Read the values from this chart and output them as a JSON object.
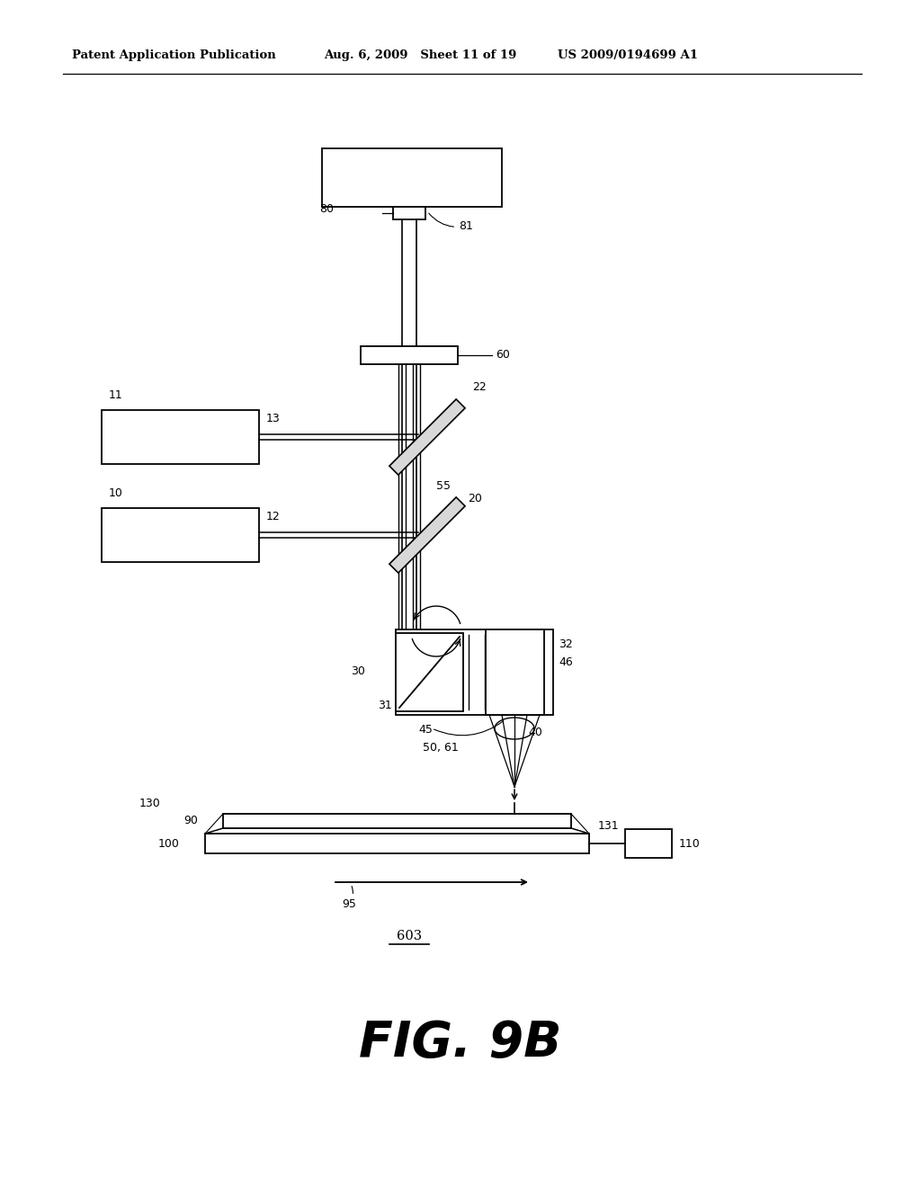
{
  "background_color": "#ffffff",
  "header_left": "Patent Application Publication",
  "header_mid": "Aug. 6, 2009   Sheet 11 of 19",
  "header_right": "US 2009/0194699 A1",
  "figure_label": "FIG. 9B",
  "diagram_label": "603"
}
